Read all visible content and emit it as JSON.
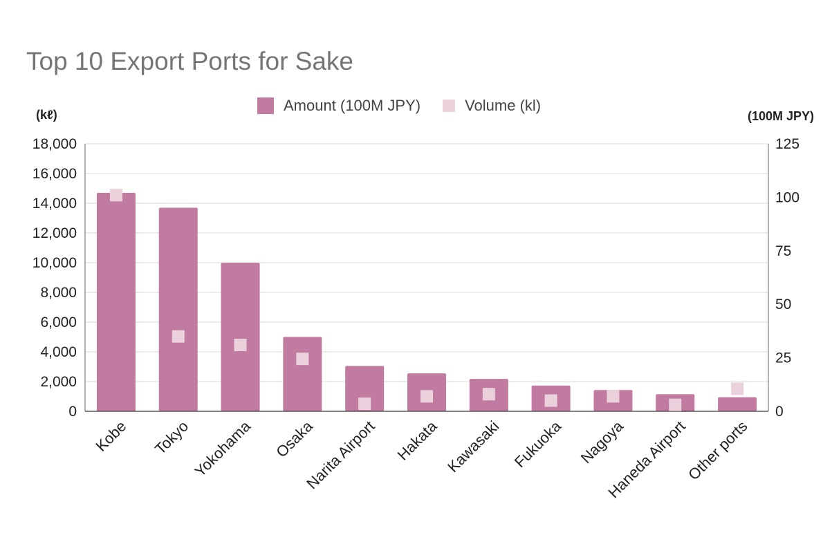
{
  "chart_data": {
    "type": "bar",
    "title": "Top 10 Export Ports for Sake",
    "left_axis_unit": "(kℓ)",
    "right_axis_unit": "(100M JPY)",
    "categories": [
      "Kobe",
      "Tokyo",
      "Yokohama",
      "Osaka",
      "Narita Airport",
      "Hakata",
      "Kawasaki",
      "Fukuoka",
      "Nagoya",
      "Haneda Airport",
      "Other ports"
    ],
    "series": [
      {
        "name": "Amount (100M JPY)",
        "kind": "bar",
        "axis": "left",
        "color": "#c27ba0",
        "values": [
          14700,
          13700,
          10000,
          5000,
          3050,
          2550,
          2180,
          1730,
          1430,
          1150,
          950
        ]
      },
      {
        "name": "Volume (kl)",
        "kind": "point",
        "axis": "right",
        "color": "#ead1dc",
        "values": [
          101,
          35,
          31,
          24.5,
          3.5,
          7,
          8,
          5,
          7,
          3,
          10.5
        ]
      }
    ],
    "left_axis": {
      "min": 0,
      "max": 18000,
      "ticks": [
        "0",
        "2,000",
        "4,000",
        "6,000",
        "8,000",
        "10,000",
        "12,000",
        "14,000",
        "16,000",
        "18,000"
      ]
    },
    "right_axis": {
      "min": 0,
      "max": 125,
      "ticks": [
        "0",
        "25",
        "50",
        "75",
        "100",
        "125"
      ]
    },
    "grid": true,
    "legend_position": "top"
  }
}
